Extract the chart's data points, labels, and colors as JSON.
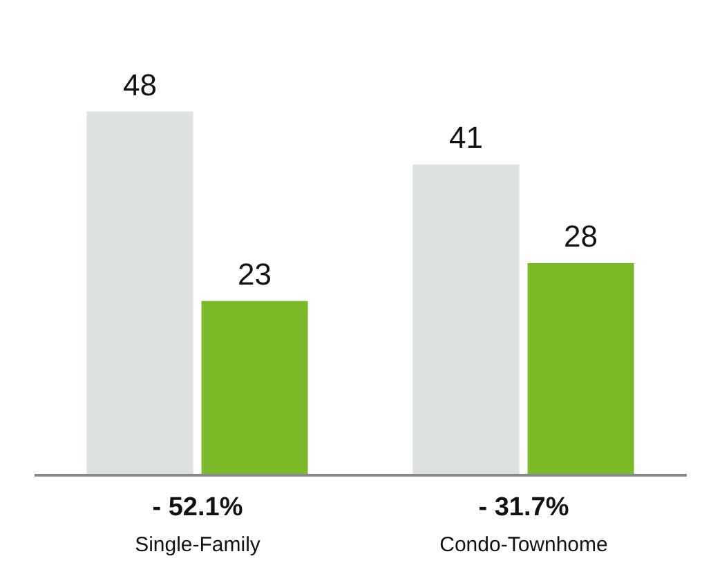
{
  "chart_data": {
    "type": "bar",
    "categories": [
      "Single-Family",
      "Condo-Townhome"
    ],
    "series": [
      {
        "color": "#dde1e1",
        "values": [
          48,
          41
        ]
      },
      {
        "color": "#7aba28",
        "values": [
          23,
          28
        ]
      }
    ],
    "data_labels": true,
    "legend": false,
    "grid": false,
    "tick_labels": "x",
    "annotations": [
      "- 52.1%",
      "- 31.7%"
    ]
  }
}
